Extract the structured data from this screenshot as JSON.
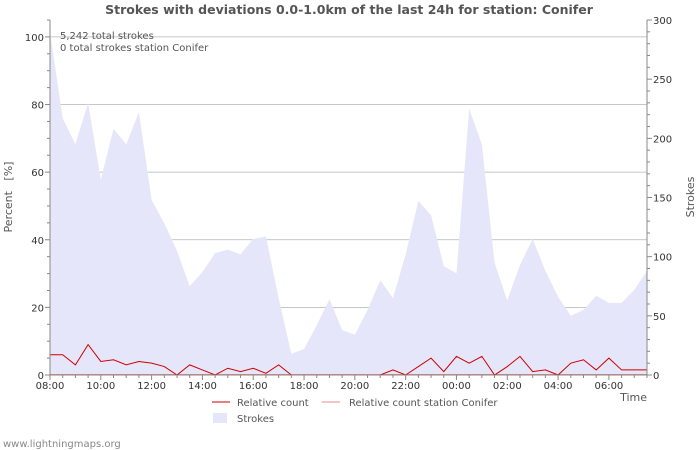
{
  "chart_data": {
    "type": "area",
    "title": "Strokes with deviations 0.0-1.0km of the last 24h for station: Conifer",
    "ylabel_left": "Percent   [%]",
    "ylabel_right": "Strokes",
    "xlabel": "Time",
    "ylim_left": [
      0,
      105
    ],
    "ylim_right": [
      0,
      300
    ],
    "y_ticks_left": [
      "0",
      "20",
      "40",
      "60",
      "80",
      "100"
    ],
    "y_ticks_right": [
      "0",
      "50",
      "100",
      "150",
      "200",
      "250",
      "300"
    ],
    "x_ticks": [
      "08:00",
      "10:00",
      "12:00",
      "14:00",
      "16:00",
      "18:00",
      "20:00",
      "22:00",
      "00:00",
      "02:00",
      "04:00",
      "06:00"
    ],
    "x_tick_hours": [
      0,
      2,
      4,
      6,
      8,
      10,
      12,
      14,
      16,
      18,
      20,
      22
    ],
    "x_range_hours": [
      0,
      23.5
    ],
    "annotations": [
      "5,242 total strokes",
      "0 total strokes station Conifer"
    ],
    "legend": {
      "relative": "Relative count",
      "station": "Relative count station Conifer",
      "strokes": "Strokes"
    },
    "colors": {
      "strokes_fill": "#e6e6fa",
      "relative_line": "#cc0000",
      "station_line": "#ee8888",
      "grid": "#b4b4b4",
      "text": "#555555"
    },
    "strokes_series": {
      "name": "Strokes",
      "hours": [
        0,
        0.5,
        1,
        1.5,
        2,
        2.5,
        3,
        3.5,
        4,
        4.5,
        5,
        5.5,
        6,
        6.5,
        7,
        7.5,
        8,
        8.5,
        9,
        9.5,
        10,
        10.5,
        11,
        11.5,
        12,
        12.5,
        13,
        13.5,
        14,
        14.5,
        15,
        15.5,
        16,
        16.5,
        17,
        17.5,
        18,
        18.5,
        19,
        19.5,
        20,
        20.5,
        21,
        21.5,
        22,
        22.5,
        23,
        23.5
      ],
      "values": [
        290,
        217,
        195,
        230,
        165,
        208,
        195,
        222,
        148,
        128,
        105,
        75,
        87,
        103,
        106,
        102,
        115,
        117,
        65,
        18,
        22,
        42,
        64,
        38,
        34,
        55,
        80,
        65,
        102,
        147,
        135,
        92,
        86,
        225,
        195,
        95,
        63,
        93,
        115,
        88,
        66,
        50,
        55,
        67,
        61,
        61,
        72,
        88
      ]
    },
    "relative_series": {
      "name": "Relative count",
      "hours": [
        0,
        0.5,
        1,
        1.5,
        2,
        2.5,
        3,
        3.5,
        4,
        4.5,
        5,
        5.5,
        6,
        6.5,
        7,
        7.5,
        8,
        8.5,
        9,
        9.5,
        10,
        10.5,
        11,
        11.5,
        12,
        12.5,
        13,
        13.5,
        14,
        14.5,
        15,
        15.5,
        16,
        16.5,
        17,
        17.5,
        18,
        18.5,
        19,
        19.5,
        20,
        20.5,
        21,
        21.5,
        22,
        22.5,
        23,
        23.5
      ],
      "values": [
        6,
        6,
        3,
        9,
        4,
        4.5,
        3,
        4,
        3.5,
        2.5,
        0,
        3,
        1.5,
        0,
        2,
        1,
        2,
        0.5,
        3,
        0,
        0,
        0,
        0,
        0,
        0,
        0,
        0,
        1.5,
        0,
        2.5,
        5,
        1,
        5.5,
        3.5,
        5.5,
        0,
        2.5,
        5.5,
        1,
        1.5,
        0,
        3.5,
        4.5,
        1.5,
        5,
        1.5,
        1.5,
        1.5
      ]
    },
    "station_series": {
      "name": "Relative count station Conifer",
      "values_note": "all zero",
      "values": [
        0,
        0
      ]
    }
  },
  "footer": {
    "credit": "www.lightningmaps.org"
  }
}
